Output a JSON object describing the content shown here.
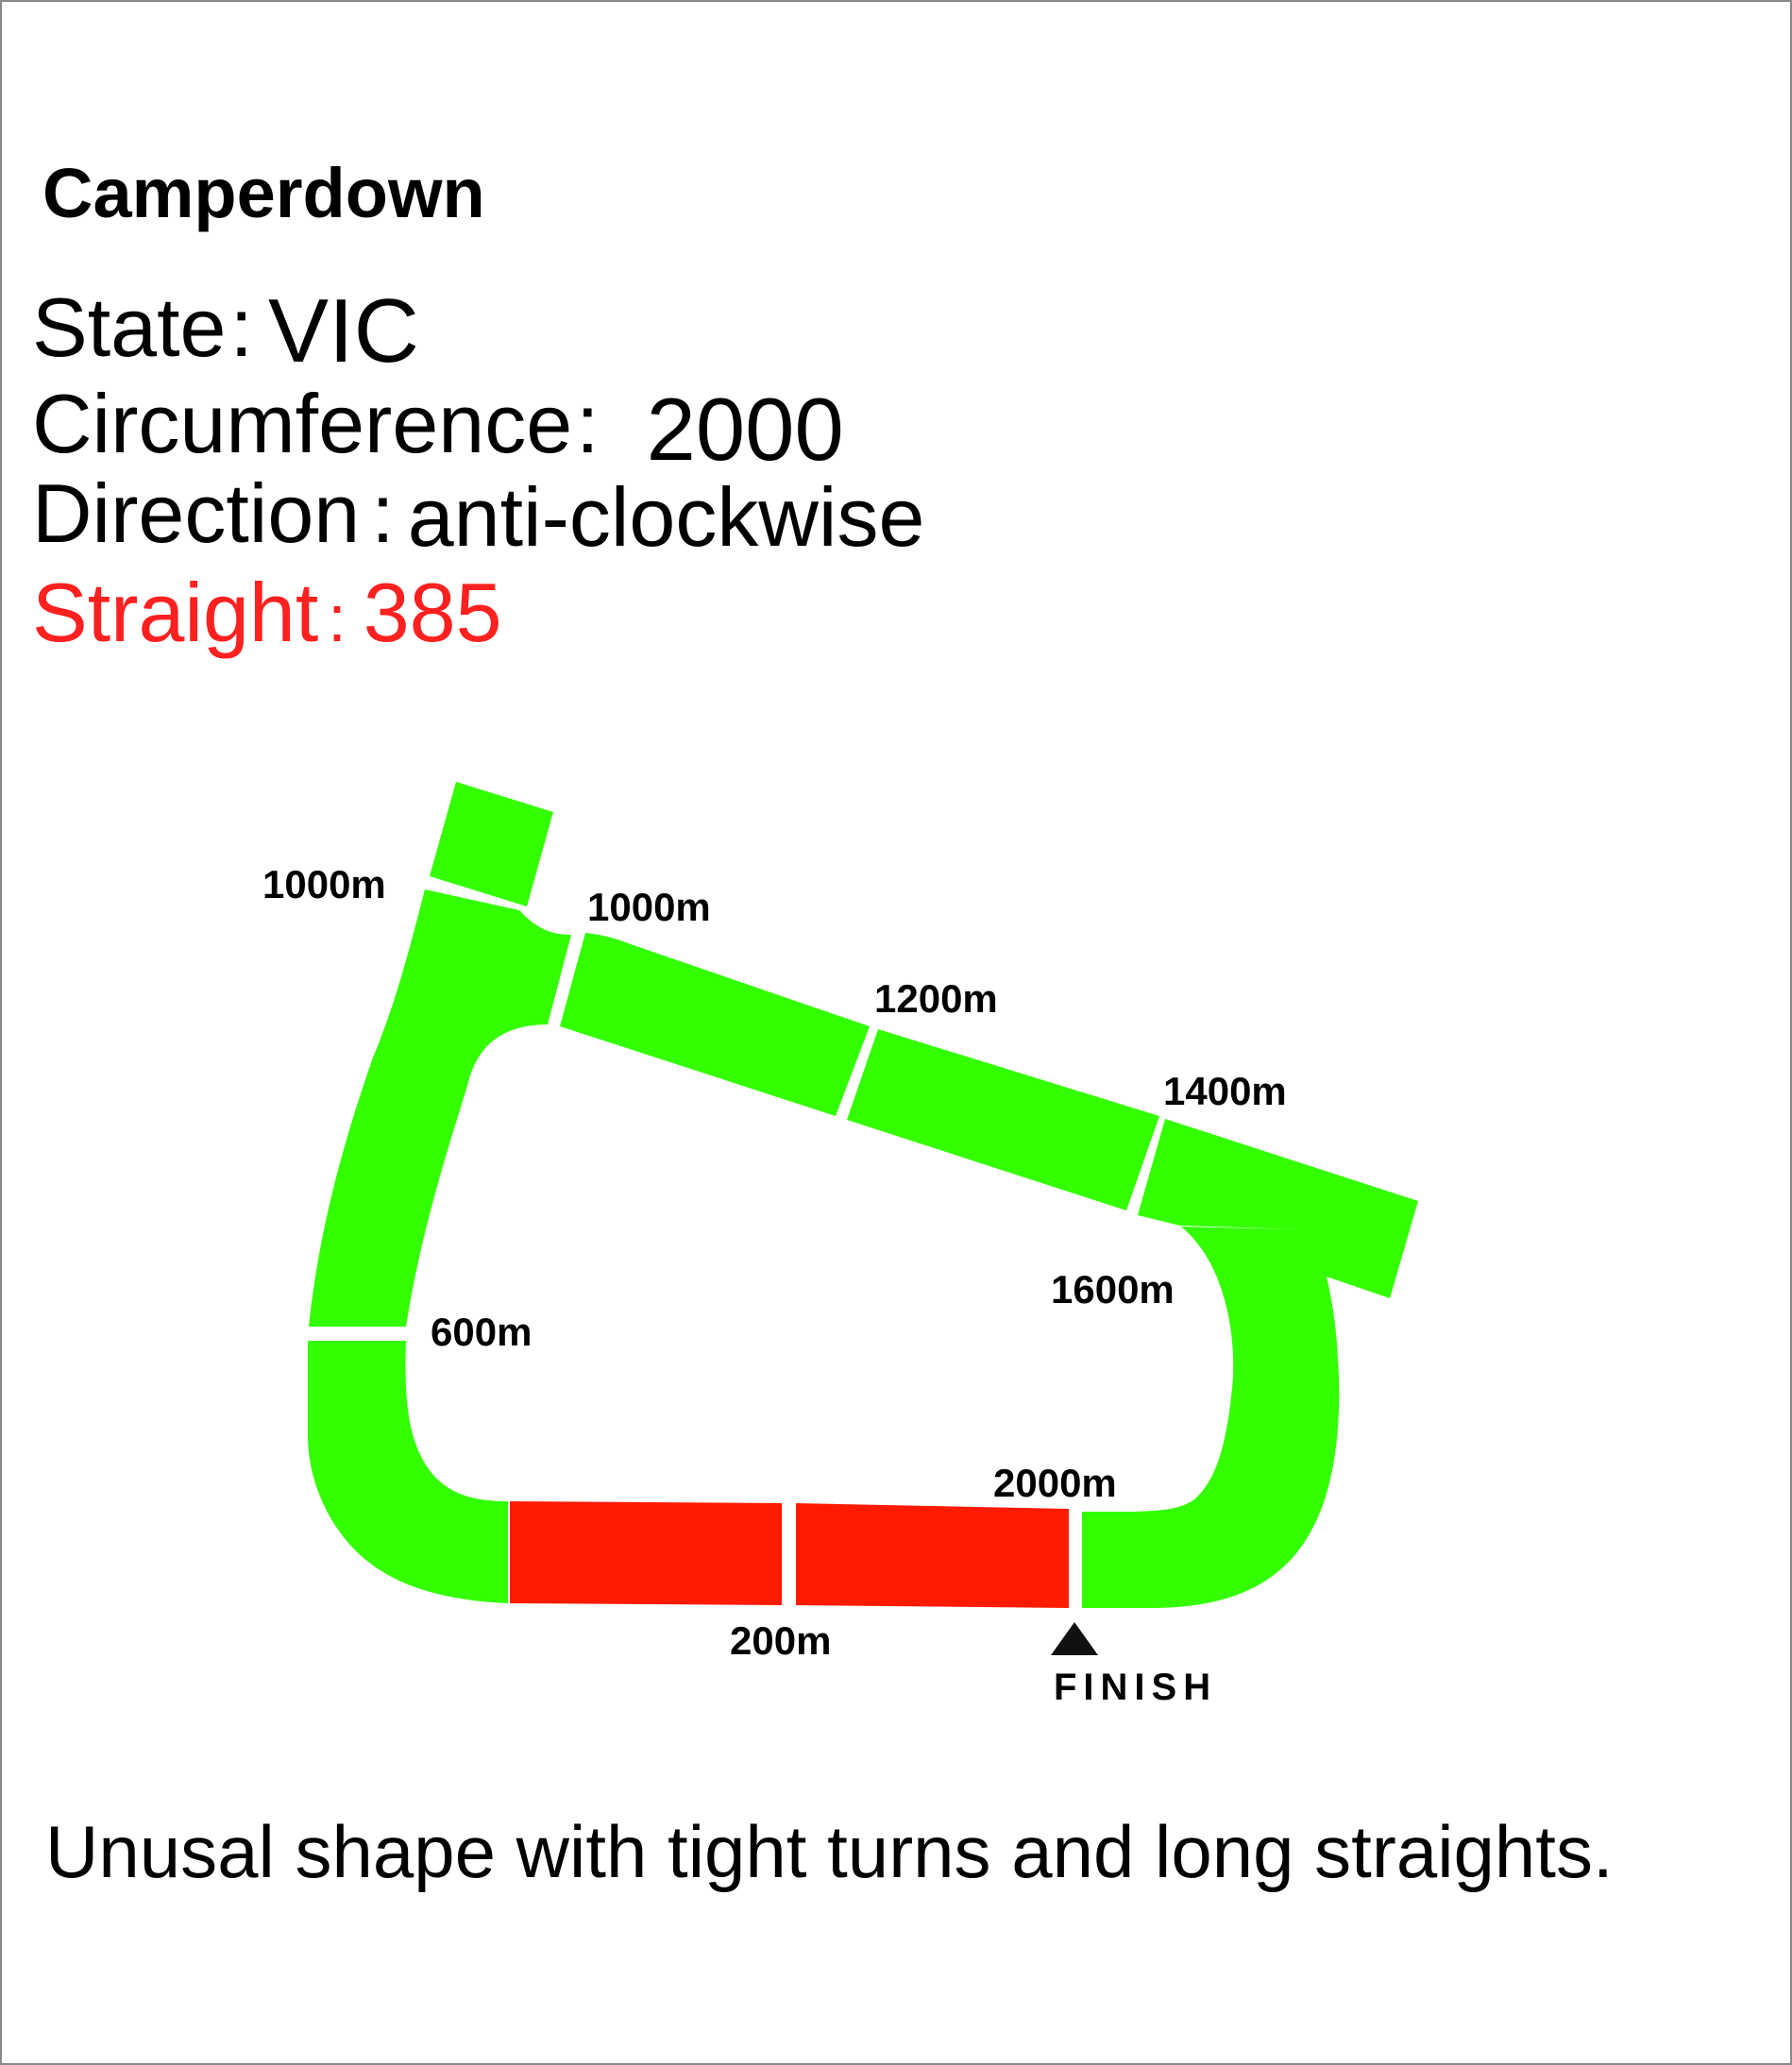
{
  "course": {
    "title": "Camperdown",
    "state_label": "State",
    "state_value": "VIC",
    "circumference_label": "Circumference",
    "circumference_value": "2000",
    "direction_label": "Direction",
    "direction_value": "anti-clockwise",
    "straight_label": "Straight",
    "straight_value": "385",
    "separator": ":"
  },
  "colors": {
    "track": "#33ff00",
    "straight": "#ff1a00",
    "straight_text": "#ff2020"
  },
  "track_markers": {
    "m1000_left": "1000m",
    "m1000_top": "1000m",
    "m1200": "1200m",
    "m1400": "1400m",
    "m1600": "1600m",
    "m600": "600m",
    "m2000": "2000m",
    "m200": "200m",
    "finish": "FINISH"
  },
  "description": "Unusal shape with tight turns and long straights."
}
